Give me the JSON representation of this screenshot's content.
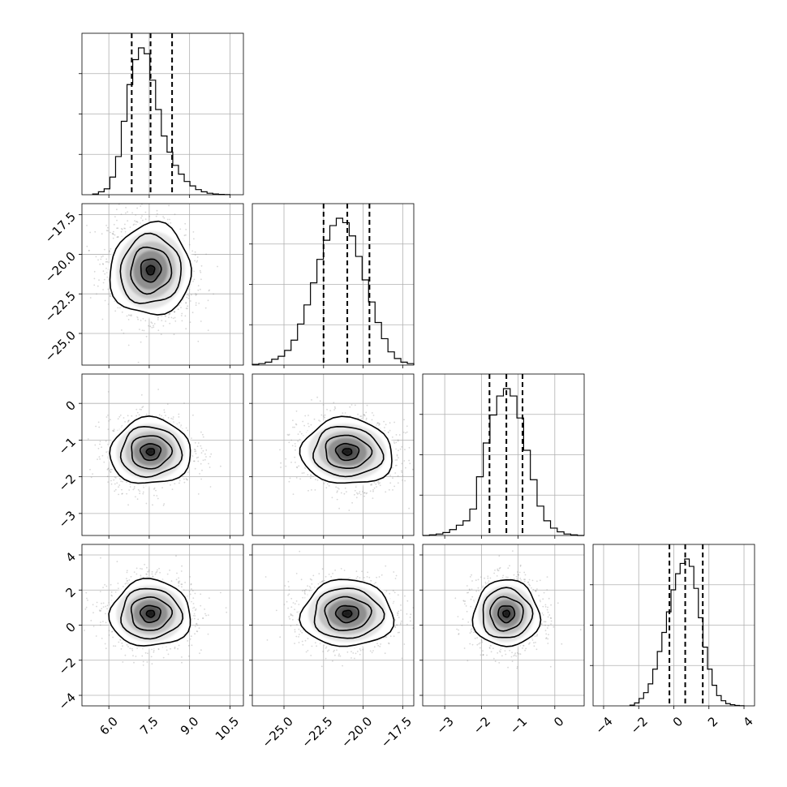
{
  "chart_data": {
    "type": "corner",
    "parameters": [
      {
        "lim": [
          5.0,
          11.0
        ],
        "ticks": [
          6.0,
          7.5,
          9.0,
          10.5
        ],
        "tick_labels": [
          "6.0",
          "7.5",
          "9.0",
          "10.5"
        ],
        "median": 7.55,
        "q16": 6.85,
        "q84": 8.35,
        "hist_lo": 5.4,
        "hist_hi": 10.5,
        "hist": [
          0.005,
          0.02,
          0.04,
          0.12,
          0.26,
          0.5,
          0.75,
          0.92,
          1.0,
          0.96,
          0.78,
          0.58,
          0.4,
          0.29,
          0.2,
          0.14,
          0.09,
          0.06,
          0.035,
          0.02,
          0.01,
          0.005,
          0.002,
          0.001
        ]
      },
      {
        "lim": [
          -27.0,
          -16.8
        ],
        "ticks": [
          -25.0,
          -22.5,
          -20.0,
          -17.5
        ],
        "tick_labels": [
          "−25.0",
          "−22.5",
          "−20.0",
          "−17.5"
        ],
        "median": -21.0,
        "q16": -22.5,
        "q84": -19.6,
        "hist_lo": -27.0,
        "hist_hi": -16.8,
        "hist": [
          0.005,
          0.01,
          0.02,
          0.04,
          0.06,
          0.1,
          0.17,
          0.28,
          0.41,
          0.56,
          0.72,
          0.85,
          0.95,
          1.0,
          0.97,
          0.88,
          0.74,
          0.58,
          0.43,
          0.29,
          0.18,
          0.09,
          0.045,
          0.02,
          0.01
        ]
      },
      {
        "lim": [
          -3.6,
          0.8
        ],
        "ticks": [
          -3,
          -2,
          -1,
          0
        ],
        "tick_labels": [
          "−3",
          "−2",
          "−1",
          "0"
        ],
        "median": -1.32,
        "q16": -1.78,
        "q84": -0.88,
        "hist_lo": -3.6,
        "hist_hi": 0.8,
        "hist": [
          0.0,
          0.004,
          0.01,
          0.02,
          0.04,
          0.07,
          0.1,
          0.18,
          0.4,
          0.63,
          0.82,
          0.95,
          1.0,
          0.95,
          0.8,
          0.58,
          0.38,
          0.2,
          0.1,
          0.05,
          0.025,
          0.01,
          0.004,
          0.0
        ]
      },
      {
        "lim": [
          -4.6,
          4.6
        ],
        "ticks": [
          -4,
          -2,
          0,
          2,
          4
        ],
        "tick_labels": [
          "−4",
          "−2",
          "0",
          "2",
          "4"
        ],
        "median": 0.65,
        "q16": -0.25,
        "q84": 1.65,
        "hist_lo": -2.5,
        "hist_hi": 4.0,
        "hist": [
          0.005,
          0.02,
          0.05,
          0.09,
          0.15,
          0.25,
          0.37,
          0.5,
          0.64,
          0.79,
          0.9,
          0.97,
          1.0,
          0.95,
          0.8,
          0.6,
          0.4,
          0.25,
          0.14,
          0.07,
          0.035,
          0.015,
          0.008,
          0.003,
          0.001
        ]
      }
    ],
    "correlations": {
      "1-0": -0.2,
      "2-0": 0.05,
      "2-1": -0.1,
      "3-0": 0.0,
      "3-1": 0.0,
      "3-2": 0.0
    },
    "grid": true,
    "labels_per_axis": {
      "title": "",
      "xlabel": "",
      "ylabel": ""
    }
  }
}
